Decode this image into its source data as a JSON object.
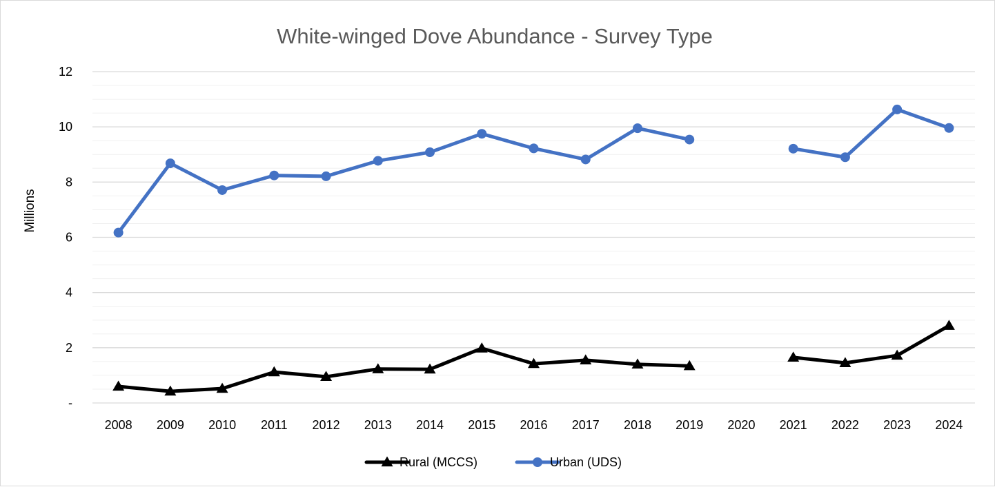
{
  "chart_data": {
    "type": "line",
    "title": "White-winged Dove Abundance - Survey Type",
    "xlabel": "",
    "ylabel": "Millions",
    "ylim": [
      0,
      12
    ],
    "ytick_values": [
      0,
      2,
      4,
      6,
      8,
      10,
      12
    ],
    "ytick_labels": [
      "-",
      "2",
      "4",
      "6",
      "8",
      "10",
      "12"
    ],
    "categories": [
      "2008",
      "2009",
      "2010",
      "2011",
      "2012",
      "2013",
      "2014",
      "2015",
      "2016",
      "2017",
      "2018",
      "2019",
      "2020",
      "2021",
      "2022",
      "2023",
      "2024"
    ],
    "grid": true,
    "legend_position": "bottom",
    "series": [
      {
        "name": "Rural (MCCS)",
        "color": "#000000",
        "marker": "triangle",
        "values": [
          0.6,
          0.42,
          0.52,
          1.12,
          0.95,
          1.23,
          1.22,
          1.98,
          1.42,
          1.55,
          1.4,
          1.34,
          null,
          1.65,
          1.45,
          1.72,
          2.8
        ]
      },
      {
        "name": "Urban (UDS)",
        "color": "#4472c4",
        "marker": "circle",
        "values": [
          6.17,
          8.68,
          7.71,
          8.24,
          8.21,
          8.77,
          9.08,
          9.75,
          9.22,
          8.82,
          9.95,
          9.54,
          null,
          9.21,
          8.9,
          10.63,
          9.96
        ]
      }
    ]
  }
}
